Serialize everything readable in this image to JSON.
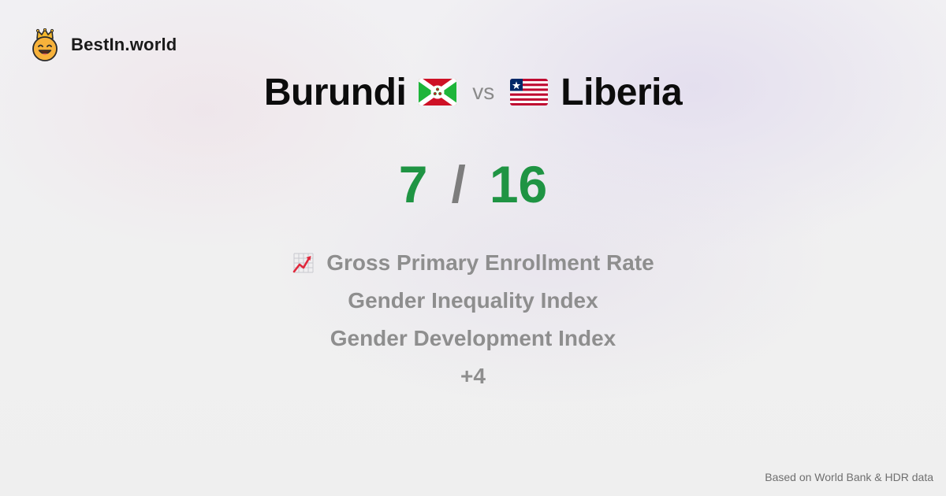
{
  "brand": {
    "name": "BestIn.world",
    "logo_icon": "smiling-face-with-crown-icon"
  },
  "comparison": {
    "left": {
      "name": "Burundi",
      "flag_icon": "burundi-flag-icon"
    },
    "separator": "vs",
    "right": {
      "name": "Liberia",
      "flag_icon": "liberia-flag-icon"
    }
  },
  "score": {
    "left": "7",
    "separator": "/",
    "right": "16",
    "color": "#1f9443"
  },
  "metrics": [
    {
      "label": "Gross Primary Enrollment Rate",
      "icon": "chart-increasing-icon"
    },
    {
      "label": "Gender Inequality Index"
    },
    {
      "label": "Gender Development Index"
    },
    {
      "label": "+4"
    }
  ],
  "footer": {
    "source": "Based on World Bank & HDR data"
  }
}
